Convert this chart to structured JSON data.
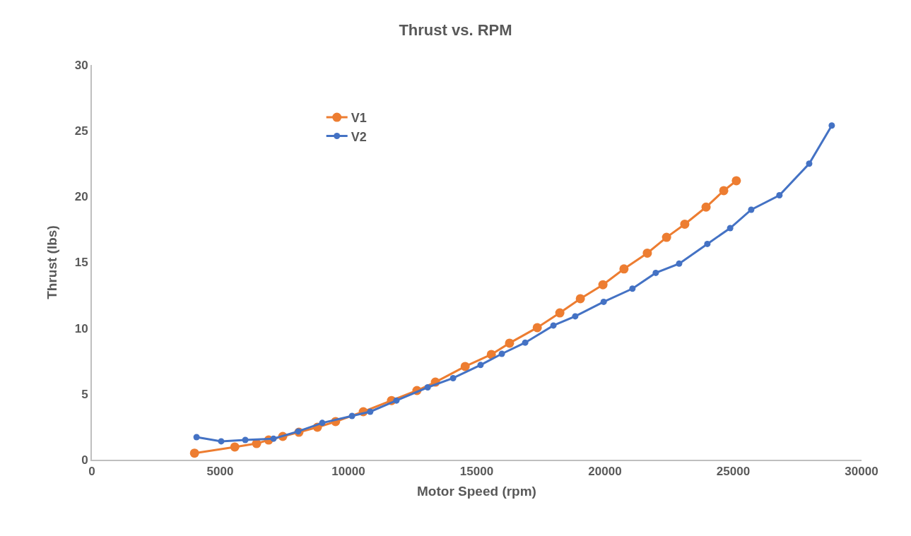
{
  "chart_data": {
    "type": "line",
    "title": "Thrust vs. RPM",
    "xlabel": "Motor Speed (rpm)",
    "ylabel": "Thrust (lbs)",
    "xlim": [
      0,
      30000
    ],
    "xticks": [
      0,
      5000,
      10000,
      15000,
      20000,
      25000,
      30000
    ],
    "ylim": [
      0,
      30
    ],
    "yticks": [
      0,
      5,
      10,
      15,
      20,
      25,
      30
    ],
    "grid": false,
    "legend": "top left",
    "marker": "circle",
    "line_style": "solid",
    "series": [
      {
        "name": "V1",
        "color": "#ed7d31",
        "x": [
          4000,
          5570,
          6420,
          6890,
          7440,
          8070,
          8790,
          9500,
          10580,
          11680,
          12670,
          13390,
          14550,
          15570,
          16280,
          17360,
          18240,
          19040,
          19920,
          20740,
          21650,
          22400,
          23110,
          23940,
          24630,
          25120
        ],
        "values": [
          0.5,
          0.97,
          1.23,
          1.5,
          1.77,
          2.09,
          2.47,
          2.9,
          3.65,
          4.5,
          5.26,
          5.9,
          7.09,
          8.0,
          8.86,
          10.04,
          11.16,
          12.24,
          13.3,
          14.5,
          15.7,
          16.9,
          17.9,
          19.2,
          20.45,
          21.2
        ]
      },
      {
        "name": "V2",
        "color": "#4472c4",
        "x": [
          4080,
          5040,
          5980,
          7080,
          8040,
          8980,
          10140,
          10850,
          11870,
          13090,
          14080,
          15150,
          15980,
          16890,
          17990,
          18840,
          19950,
          21070,
          21980,
          22890,
          23990,
          24880,
          25700,
          26800,
          27960,
          28840
        ],
        "values": [
          1.72,
          1.4,
          1.5,
          1.6,
          2.15,
          2.8,
          3.33,
          3.65,
          4.5,
          5.5,
          6.2,
          7.2,
          8.05,
          8.9,
          10.2,
          10.9,
          12.0,
          13.0,
          14.2,
          14.9,
          16.4,
          17.6,
          19.0,
          20.1,
          22.5,
          25.4
        ]
      }
    ]
  }
}
